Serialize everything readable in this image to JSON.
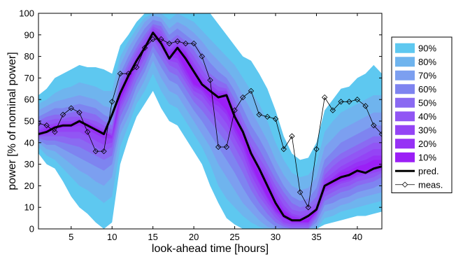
{
  "chart_data": {
    "type": "area",
    "title": "",
    "xlabel": "look-ahead time [hours]",
    "ylabel": "power [% of nominal power]",
    "xlim": [
      1,
      43
    ],
    "ylim": [
      0,
      100
    ],
    "x_ticks": [
      5,
      10,
      15,
      20,
      25,
      30,
      35,
      40
    ],
    "y_ticks": [
      0,
      10,
      20,
      30,
      40,
      50,
      60,
      70,
      80,
      90,
      100
    ],
    "grid": false,
    "legend_position": "right",
    "x": [
      1,
      2,
      3,
      4,
      5,
      6,
      7,
      8,
      9,
      10,
      11,
      12,
      13,
      14,
      15,
      16,
      17,
      18,
      19,
      20,
      21,
      22,
      23,
      24,
      25,
      26,
      27,
      28,
      29,
      30,
      31,
      32,
      33,
      34,
      35,
      36,
      37,
      38,
      39,
      40,
      41,
      42,
      43
    ],
    "interval_bands": [
      {
        "name": "90%",
        "color": "#5ec8f0",
        "lower": [
          35,
          30,
          28,
          22,
          15,
          10,
          7,
          3,
          0,
          3,
          30,
          42,
          52,
          58,
          64,
          56,
          50,
          48,
          42,
          36,
          30,
          20,
          12,
          5,
          2,
          0,
          0,
          0,
          0,
          0,
          0,
          0,
          0,
          0,
          0,
          2,
          3,
          4,
          5,
          6,
          6,
          7,
          8
        ],
        "upper": [
          62,
          65,
          70,
          72,
          74,
          76,
          75,
          75,
          74,
          72,
          85,
          90,
          96,
          100,
          100,
          100,
          100,
          100,
          100,
          100,
          100,
          100,
          95,
          90,
          85,
          80,
          78,
          72,
          65,
          55,
          43,
          35,
          32,
          33,
          40,
          55,
          60,
          65,
          66,
          70,
          72,
          76,
          72
        ]
      },
      {
        "name": "80%",
        "color": "#6fb4ee",
        "lower": [
          38,
          34,
          32,
          28,
          24,
          20,
          18,
          15,
          12,
          15,
          38,
          48,
          58,
          64,
          72,
          64,
          58,
          56,
          50,
          44,
          38,
          30,
          20,
          14,
          10,
          6,
          3,
          1,
          0,
          0,
          0,
          0,
          0,
          0,
          0,
          5,
          6,
          8,
          9,
          10,
          11,
          12,
          13
        ],
        "upper": [
          58,
          60,
          63,
          65,
          66,
          68,
          67,
          66,
          64,
          64,
          80,
          87,
          93,
          98,
          100,
          100,
          97,
          100,
          98,
          96,
          92,
          88,
          84,
          80,
          76,
          70,
          64,
          58,
          50,
          40,
          32,
          26,
          24,
          25,
          30,
          45,
          50,
          54,
          56,
          58,
          60,
          62,
          62
        ]
      },
      {
        "name": "70%",
        "color": "#7c9ff0",
        "lower": [
          40,
          37,
          36,
          33,
          30,
          27,
          25,
          22,
          20,
          24,
          44,
          52,
          62,
          69,
          78,
          70,
          64,
          62,
          56,
          50,
          44,
          38,
          30,
          24,
          18,
          12,
          8,
          4,
          1,
          0,
          0,
          0,
          0,
          0,
          1,
          8,
          9,
          11,
          12,
          14,
          15,
          16,
          17
        ],
        "upper": [
          55,
          57,
          59,
          60,
          61,
          62,
          61,
          60,
          57,
          56,
          76,
          84,
          90,
          96,
          99,
          98,
          93,
          96,
          94,
          91,
          87,
          82,
          78,
          74,
          69,
          62,
          55,
          48,
          41,
          32,
          25,
          20,
          18,
          19,
          24,
          38,
          42,
          46,
          48,
          50,
          52,
          54,
          54
        ]
      },
      {
        "name": "60%",
        "color": "#7e84f0",
        "lower": [
          41,
          39,
          39,
          37,
          35,
          33,
          31,
          29,
          27,
          30,
          48,
          56,
          66,
          73,
          82,
          75,
          69,
          67,
          61,
          55,
          50,
          44,
          38,
          32,
          26,
          19,
          13,
          8,
          4,
          1,
          0,
          0,
          0,
          0,
          3,
          11,
          12,
          14,
          15,
          17,
          18,
          19,
          21
        ],
        "upper": [
          52,
          54,
          56,
          56,
          57,
          58,
          57,
          56,
          53,
          51,
          72,
          80,
          87,
          93,
          97,
          96,
          90,
          93,
          90,
          87,
          82,
          77,
          73,
          70,
          64,
          56,
          48,
          42,
          35,
          27,
          20,
          15,
          13,
          14,
          19,
          32,
          36,
          40,
          42,
          44,
          46,
          48,
          48
        ]
      },
      {
        "name": "50%",
        "color": "#8a6af2",
        "lower": [
          42,
          41,
          41,
          40,
          39,
          38,
          36,
          34,
          32,
          34,
          52,
          60,
          69,
          76,
          85,
          79,
          73,
          71,
          65,
          59,
          55,
          50,
          45,
          40,
          33,
          26,
          18,
          12,
          7,
          3,
          1,
          0,
          0,
          0,
          5,
          13,
          15,
          17,
          18,
          20,
          21,
          22,
          24
        ],
        "upper": [
          50,
          52,
          53,
          53,
          54,
          55,
          54,
          53,
          50,
          48,
          69,
          77,
          84,
          90,
          95,
          94,
          87,
          90,
          87,
          83,
          77,
          72,
          69,
          67,
          60,
          51,
          43,
          37,
          30,
          23,
          17,
          12,
          10,
          11,
          15,
          28,
          32,
          35,
          37,
          39,
          41,
          43,
          43
        ]
      },
      {
        "name": "40%",
        "color": "#9156f4",
        "lower": [
          43,
          43,
          43,
          43,
          42,
          42,
          40,
          38,
          36,
          38,
          55,
          63,
          72,
          79,
          88,
          82,
          76,
          74,
          68,
          62,
          59,
          54,
          50,
          45,
          38,
          31,
          22,
          15,
          10,
          5,
          2,
          1,
          1,
          1,
          6,
          15,
          17,
          19,
          20,
          22,
          23,
          24,
          26
        ],
        "upper": [
          48,
          50,
          51,
          51,
          52,
          52,
          51,
          50,
          48,
          46,
          67,
          75,
          82,
          88,
          94,
          92,
          85,
          88,
          85,
          80,
          74,
          69,
          66,
          65,
          57,
          48,
          39,
          33,
          27,
          20,
          14,
          9,
          8,
          9,
          12,
          25,
          29,
          32,
          34,
          36,
          38,
          40,
          40
        ]
      },
      {
        "name": "30%",
        "color": "#9444f5",
        "lower": [
          43,
          44,
          45,
          45,
          45,
          45,
          43,
          41,
          39,
          40,
          57,
          65,
          74,
          81,
          89,
          84,
          78,
          77,
          70,
          64,
          62,
          57,
          54,
          49,
          42,
          35,
          25,
          18,
          12,
          7,
          3,
          2,
          2,
          2,
          7,
          17,
          19,
          21,
          22,
          24,
          25,
          26,
          27
        ],
        "upper": [
          46,
          48,
          49,
          50,
          50,
          51,
          50,
          48,
          46,
          44,
          65,
          73,
          80,
          86,
          93,
          90,
          83,
          86,
          83,
          77,
          71,
          67,
          64,
          64,
          55,
          46,
          37,
          30,
          25,
          17,
          11,
          7,
          6,
          7,
          10,
          23,
          26,
          29,
          31,
          33,
          35,
          37,
          37
        ]
      },
      {
        "name": "20%",
        "color": "#9632f5",
        "lower": [
          44,
          45,
          46,
          47,
          47,
          48,
          46,
          44,
          42,
          42,
          59,
          67,
          76,
          83,
          90,
          86,
          80,
          79,
          72,
          66,
          64,
          59,
          57,
          53,
          45,
          38,
          28,
          21,
          14,
          8,
          5,
          3,
          3,
          3,
          8,
          18,
          20,
          22,
          23,
          25,
          26,
          27,
          28
        ],
        "upper": [
          45,
          47,
          48,
          49,
          49,
          50,
          49,
          47,
          45,
          43,
          63,
          71,
          78,
          84,
          92,
          88,
          82,
          85,
          82,
          75,
          69,
          65,
          63,
          63,
          54,
          45,
          35,
          28,
          23,
          15,
          9,
          6,
          5,
          5,
          9,
          21,
          24,
          27,
          29,
          31,
          32,
          34,
          34
        ]
      },
      {
        "name": "10%",
        "color": "#9b1ff6",
        "lower": [
          44,
          45,
          47,
          47,
          48,
          49,
          48,
          46,
          44,
          43,
          60,
          68,
          77,
          84,
          90,
          87,
          81,
          81,
          74,
          67,
          65,
          61,
          59,
          55,
          47,
          40,
          30,
          22,
          15,
          9,
          5,
          3,
          3,
          3,
          8,
          19,
          21,
          23,
          24,
          26,
          27,
          28,
          29
        ],
        "upper": [
          44,
          46,
          48,
          48,
          49,
          50,
          49,
          47,
          45,
          43,
          62,
          70,
          78,
          85,
          91,
          88,
          81,
          84,
          81,
          74,
          68,
          64,
          62,
          62,
          52,
          43,
          34,
          26,
          21,
          13,
          8,
          5,
          4,
          5,
          9,
          20,
          23,
          26,
          27,
          29,
          30,
          32,
          32
        ]
      }
    ],
    "series": [
      {
        "name": "pred.",
        "style": "line",
        "color": "#000000",
        "values": [
          44,
          45,
          47,
          48,
          48,
          50,
          48,
          46,
          44,
          53,
          63,
          71,
          78,
          84,
          91,
          86,
          79,
          84,
          79,
          73,
          67,
          64,
          61,
          62,
          52,
          45,
          35,
          28,
          20,
          12,
          6,
          4,
          4,
          6,
          9,
          20,
          22,
          24,
          25,
          27,
          26,
          28,
          29
        ]
      },
      {
        "name": "meas.",
        "style": "line-marker",
        "marker": "diamond",
        "color": "#000000",
        "values": [
          49,
          48,
          45,
          53,
          56,
          54,
          45,
          36,
          36,
          59,
          72,
          72,
          75,
          84,
          88,
          88,
          86,
          87,
          86,
          86,
          80,
          69,
          38,
          38,
          55,
          61,
          64,
          53,
          52,
          51,
          37,
          43,
          17,
          10,
          37,
          61,
          55,
          59,
          59,
          60,
          57,
          48,
          44
        ]
      }
    ]
  }
}
